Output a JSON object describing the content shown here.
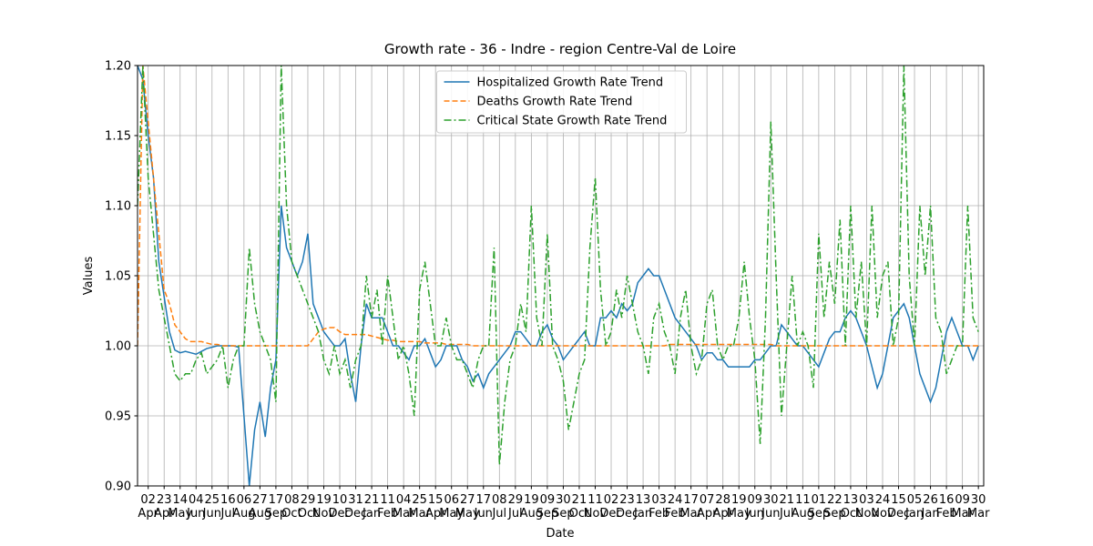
{
  "chart_data": {
    "type": "line",
    "title": "Growth rate - 36 - Indre - region Centre-Val de Loire",
    "xlabel": "Date",
    "ylabel": "Values",
    "xlim": [
      0,
      159
    ],
    "ylim": [
      0.9,
      1.2
    ],
    "yticks": [
      {
        "value": 0.9,
        "label": "0.90"
      },
      0.95,
      {
        "value": 1.0,
        "label": "1.00"
      },
      1.05,
      {
        "value": 1.1,
        "label": "1.10"
      },
      1.15,
      {
        "value": 1.2,
        "label": "1.20"
      }
    ],
    "xticks": [
      {
        "value": 2,
        "label": "02\nApr"
      },
      {
        "value": 5,
        "label": "23\nApr"
      },
      {
        "value": 8,
        "label": "14\nMay"
      },
      {
        "value": 11,
        "label": "04\nJun"
      },
      {
        "value": 14,
        "label": "25\nJun"
      },
      {
        "value": 17,
        "label": "16\nJul"
      },
      {
        "value": 20,
        "label": "06\nAug"
      },
      {
        "value": 23,
        "label": "27\nAug"
      },
      {
        "value": 26,
        "label": "17\nSep"
      },
      {
        "value": 29,
        "label": "08\nOct"
      },
      {
        "value": 32,
        "label": "29\nOct"
      },
      {
        "value": 35,
        "label": "19\nNov"
      },
      {
        "value": 38,
        "label": "10\nDec"
      },
      {
        "value": 41,
        "label": "31\nDec"
      },
      {
        "value": 44,
        "label": "21\nJan"
      },
      {
        "value": 47,
        "label": "11\nFeb"
      },
      {
        "value": 50,
        "label": "04\nMar"
      },
      {
        "value": 53,
        "label": "25\nMar"
      },
      {
        "value": 56,
        "label": "15\nApr"
      },
      {
        "value": 59,
        "label": "06\nMay"
      },
      {
        "value": 62,
        "label": "27\nMay"
      },
      {
        "value": 65,
        "label": "17\nJun"
      },
      {
        "value": 68,
        "label": "08\nJul"
      },
      {
        "value": 71,
        "label": "29\nJul"
      },
      {
        "value": 74,
        "label": "19\nAug"
      },
      {
        "value": 77,
        "label": "09\nSep"
      },
      {
        "value": 80,
        "label": "30\nSep"
      },
      {
        "value": 83,
        "label": "21\nOct"
      },
      {
        "value": 86,
        "label": "11\nNov"
      },
      {
        "value": 89,
        "label": "02\nDec"
      },
      {
        "value": 92,
        "label": "23\nDec"
      },
      {
        "value": 95,
        "label": "13\nJan"
      },
      {
        "value": 98,
        "label": "03\nFeb"
      },
      {
        "value": 101,
        "label": "24\nFeb"
      },
      {
        "value": 104,
        "label": "17\nMar"
      },
      {
        "value": 107,
        "label": "07\nApr"
      },
      {
        "value": 110,
        "label": "28\nApr"
      },
      {
        "value": 113,
        "label": "19\nMay"
      },
      {
        "value": 116,
        "label": "09\nJun"
      },
      {
        "value": 119,
        "label": "30\nJun"
      },
      {
        "value": 122,
        "label": "21\nJul"
      },
      {
        "value": 125,
        "label": "11\nAug"
      },
      {
        "value": 128,
        "label": "01\nSep"
      },
      {
        "value": 131,
        "label": "22\nSep"
      },
      {
        "value": 134,
        "label": "13\nOct"
      },
      {
        "value": 137,
        "label": "03\nNov"
      },
      {
        "value": 140,
        "label": "24\nNov"
      },
      {
        "value": 143,
        "label": "15\nDec"
      },
      {
        "value": 146,
        "label": "05\nJan"
      },
      {
        "value": 149,
        "label": "26\nJan"
      },
      {
        "value": 152,
        "label": "16\nFeb"
      },
      {
        "value": 155,
        "label": "09\nMar"
      },
      {
        "value": 158,
        "label": "30\nMar"
      }
    ],
    "grid": true,
    "legend": "upper center",
    "series": [
      {
        "name": "Hospitalized Growth Rate Trend",
        "color": "#1f77b4",
        "linestyle": "solid",
        "values": [
          1.2,
          1.19,
          1.15,
          1.12,
          1.06,
          1.035,
          1.01,
          0.997,
          0.995,
          0.996,
          0.995,
          0.994,
          0.996,
          0.998,
          0.999,
          1.0,
          1.0,
          1.0,
          1.0,
          0.999,
          0.95,
          0.9,
          0.94,
          0.96,
          0.935,
          0.97,
          0.99,
          1.1,
          1.07,
          1.06,
          1.05,
          1.06,
          1.08,
          1.03,
          1.02,
          1.01,
          1.005,
          1.0,
          1.0,
          1.005,
          0.98,
          0.96,
          1.0,
          1.03,
          1.02,
          1.02,
          1.02,
          1.01,
          1.0,
          1.0,
          0.995,
          0.99,
          1.0,
          1.0,
          1.005,
          0.995,
          0.985,
          0.99,
          1.0,
          1.0,
          1.0,
          0.99,
          0.985,
          0.975,
          0.98,
          0.97,
          0.98,
          0.985,
          0.99,
          0.995,
          1.0,
          1.01,
          1.01,
          1.005,
          1.0,
          1.0,
          1.01,
          1.015,
          1.005,
          1.0,
          0.99,
          0.995,
          1.0,
          1.005,
          1.01,
          1.0,
          1.0,
          1.02,
          1.02,
          1.025,
          1.02,
          1.03,
          1.025,
          1.03,
          1.045,
          1.05,
          1.055,
          1.05,
          1.05,
          1.04,
          1.03,
          1.02,
          1.015,
          1.01,
          1.005,
          1.0,
          0.99,
          0.995,
          0.995,
          0.99,
          0.99,
          0.985,
          0.985,
          0.985,
          0.985,
          0.985,
          0.99,
          0.99,
          0.995,
          1.0,
          1.0,
          1.015,
          1.01,
          1.005,
          1.0,
          1.0,
          0.995,
          0.99,
          0.985,
          0.995,
          1.005,
          1.01,
          1.01,
          1.02,
          1.025,
          1.02,
          1.01,
          1.0,
          0.985,
          0.97,
          0.98,
          1.0,
          1.02,
          1.025,
          1.03,
          1.02,
          1.0,
          0.98,
          0.97,
          0.96,
          0.97,
          0.99,
          1.01,
          1.02,
          1.01,
          1.0,
          1.0,
          0.99,
          1.0
        ]
      },
      {
        "name": "Deaths Growth Rate Trend",
        "color": "#ff7f0e",
        "linestyle": "dashed",
        "values": [
          1.0,
          1.2,
          1.16,
          1.12,
          1.08,
          1.04,
          1.03,
          1.015,
          1.01,
          1.005,
          1.003,
          1.003,
          1.003,
          1.002,
          1.001,
          1.001,
          1.0,
          1.0,
          1.0,
          1.0,
          1.0,
          1.0,
          1.0,
          1.0,
          1.0,
          1.0,
          1.0,
          1.0,
          1.0,
          1.0,
          1.0,
          1.0,
          1.0,
          1.005,
          1.01,
          1.012,
          1.013,
          1.013,
          1.01,
          1.008,
          1.008,
          1.008,
          1.008,
          1.008,
          1.007,
          1.006,
          1.005,
          1.004,
          1.004,
          1.003,
          1.003,
          1.003,
          1.003,
          1.003,
          1.002,
          1.002,
          1.002,
          1.002,
          1.001,
          1.001,
          1.001,
          1.001,
          1.001,
          1.0,
          1.0,
          1.0,
          1.0,
          1.0,
          1.0,
          1.0,
          1.0,
          1.0,
          1.0,
          1.0,
          1.0,
          1.0,
          1.0,
          1.0,
          1.0,
          1.0,
          1.0,
          1.0,
          1.0,
          1.0,
          1.0,
          1.0,
          1.0,
          1.0,
          1.0,
          1.0,
          1.0,
          1.0,
          1.0,
          1.0,
          1.0,
          1.0,
          1.0,
          1.0,
          1.0,
          1.0,
          1.001,
          1.001,
          1.001,
          1.001,
          1.001,
          1.001,
          1.001,
          1.001,
          1.001,
          1.001,
          1.001,
          1.001,
          1.001,
          1.001,
          1.001,
          1.001,
          1.001,
          1.001,
          1.001,
          1.001,
          1.0,
          1.0,
          1.0,
          1.0,
          1.0,
          1.0,
          1.0,
          1.0,
          1.0,
          1.0,
          1.0,
          1.0,
          1.0,
          1.0,
          1.0,
          1.0,
          1.0,
          1.0,
          1.0,
          1.0,
          1.0,
          1.0,
          1.0,
          1.0,
          1.0,
          1.0,
          1.0,
          1.0,
          1.0,
          1.0,
          1.0,
          1.0,
          1.0,
          1.0,
          1.0,
          1.0,
          1.0,
          1.0,
          1.0
        ]
      },
      {
        "name": "Critical State Growth Rate Trend",
        "color": "#2ca02c",
        "linestyle": "dashdot",
        "values": [
          1.1,
          1.2,
          1.12,
          1.08,
          1.04,
          1.02,
          1.0,
          0.98,
          0.975,
          0.98,
          0.98,
          0.99,
          0.995,
          0.98,
          0.985,
          0.99,
          1.0,
          0.97,
          0.99,
          1.0,
          1.0,
          1.07,
          1.03,
          1.01,
          1.0,
          0.99,
          0.96,
          1.2,
          1.1,
          1.06,
          1.05,
          1.04,
          1.03,
          1.02,
          1.01,
          0.99,
          0.98,
          1.0,
          0.98,
          0.99,
          0.97,
          0.99,
          1.0,
          1.05,
          1.02,
          1.04,
          1.0,
          1.05,
          1.02,
          0.99,
          1.0,
          0.98,
          0.95,
          1.04,
          1.06,
          1.03,
          1.0,
          1.0,
          1.02,
          1.0,
          0.99,
          0.99,
          0.98,
          0.97,
          0.99,
          1.0,
          1.0,
          1.07,
          0.915,
          0.96,
          0.99,
          1.0,
          1.03,
          1.01,
          1.1,
          1.02,
          1.0,
          1.08,
          1.0,
          0.99,
          0.975,
          0.94,
          0.96,
          0.98,
          0.99,
          1.07,
          1.12,
          1.04,
          1.0,
          1.01,
          1.04,
          1.02,
          1.05,
          1.03,
          1.01,
          1.0,
          0.98,
          1.02,
          1.03,
          1.01,
          1.0,
          0.98,
          1.02,
          1.04,
          1.0,
          0.98,
          0.99,
          1.03,
          1.04,
          1.0,
          0.99,
          1.0,
          1.0,
          1.02,
          1.06,
          1.02,
          0.99,
          0.93,
          1.02,
          1.16,
          1.05,
          0.95,
          1.0,
          1.05,
          1.0,
          1.01,
          1.0,
          0.97,
          1.08,
          1.02,
          1.06,
          1.03,
          1.09,
          1.0,
          1.1,
          1.02,
          1.06,
          1.0,
          1.1,
          1.02,
          1.05,
          1.06,
          1.0,
          1.02,
          1.2,
          1.05,
          1.0,
          1.1,
          1.05,
          1.1,
          1.02,
          1.01,
          0.98,
          0.99,
          1.0,
          1.0,
          1.1,
          1.02,
          1.01
        ]
      }
    ]
  }
}
